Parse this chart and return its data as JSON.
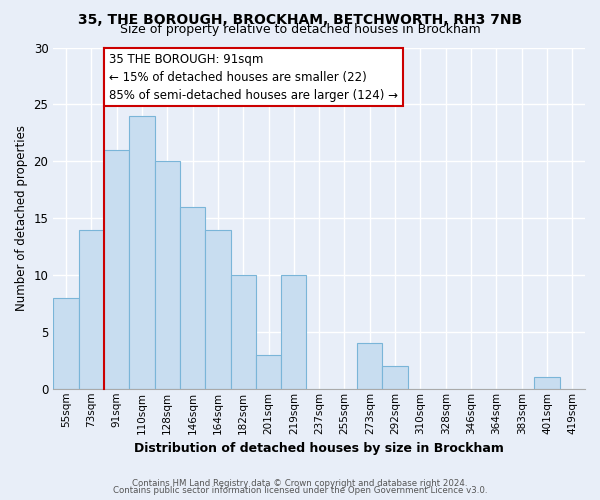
{
  "title1": "35, THE BOROUGH, BROCKHAM, BETCHWORTH, RH3 7NB",
  "title2": "Size of property relative to detached houses in Brockham",
  "xlabel": "Distribution of detached houses by size in Brockham",
  "ylabel": "Number of detached properties",
  "bar_labels": [
    "55sqm",
    "73sqm",
    "91sqm",
    "110sqm",
    "128sqm",
    "146sqm",
    "164sqm",
    "182sqm",
    "201sqm",
    "219sqm",
    "237sqm",
    "255sqm",
    "273sqm",
    "292sqm",
    "310sqm",
    "328sqm",
    "346sqm",
    "364sqm",
    "383sqm",
    "401sqm",
    "419sqm"
  ],
  "bar_values": [
    8,
    14,
    21,
    24,
    20,
    16,
    14,
    10,
    3,
    10,
    0,
    0,
    4,
    2,
    0,
    0,
    0,
    0,
    0,
    1,
    0
  ],
  "bar_color": "#c8ddf0",
  "bar_edge_color": "#7ab5d8",
  "highlight_index": 2,
  "highlight_line_color": "#cc0000",
  "ylim": [
    0,
    30
  ],
  "yticks": [
    0,
    5,
    10,
    15,
    20,
    25,
    30
  ],
  "annotation_title": "35 THE BOROUGH: 91sqm",
  "annotation_line1": "← 15% of detached houses are smaller (22)",
  "annotation_line2": "85% of semi-detached houses are larger (124) →",
  "annotation_box_color": "#ffffff",
  "annotation_box_edge": "#cc0000",
  "footer1": "Contains HM Land Registry data © Crown copyright and database right 2024.",
  "footer2": "Contains public sector information licensed under the Open Government Licence v3.0.",
  "bg_color": "#e8eef8",
  "plot_bg_color": "#e8eef8",
  "grid_color": "#ffffff",
  "title1_fontsize": 10,
  "title2_fontsize": 9
}
